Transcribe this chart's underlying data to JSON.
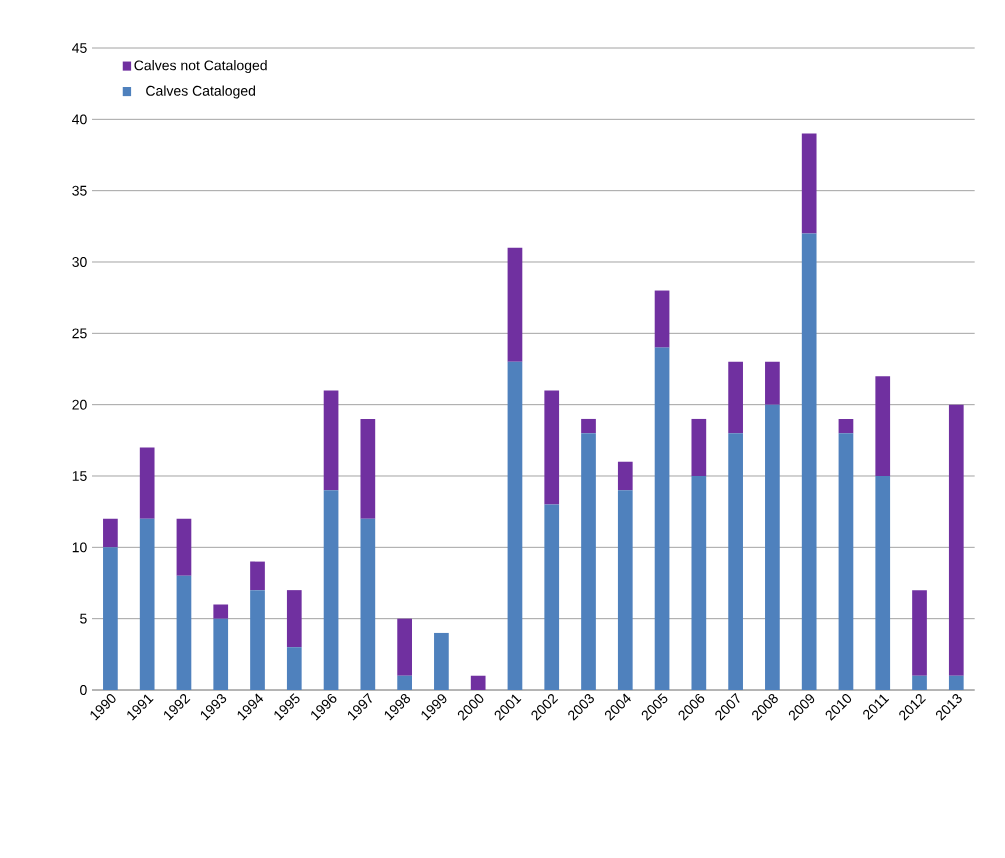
{
  "chart_data": {
    "type": "bar",
    "stacked": true,
    "categories": [
      "1990",
      "1991",
      "1992",
      "1993",
      "1994",
      "1995",
      "1996",
      "1997",
      "1998",
      "1999",
      "2000",
      "2001",
      "2002",
      "2003",
      "2004",
      "2005",
      "2006",
      "2007",
      "2008",
      "2009",
      "2010",
      "2011",
      "2012",
      "2013"
    ],
    "series": [
      {
        "name": "Calves Cataloged",
        "color": "#4f81bd",
        "values": [
          10,
          12,
          8,
          5,
          7,
          3,
          14,
          12,
          1,
          4,
          0,
          23,
          13,
          18,
          14,
          24,
          15,
          18,
          20,
          32,
          18,
          15,
          1,
          1
        ]
      },
      {
        "name": "Calves not Cataloged",
        "color": "#7030a0",
        "values": [
          2,
          5,
          4,
          1,
          2,
          4,
          7,
          7,
          4,
          0,
          1,
          8,
          8,
          1,
          2,
          4,
          4,
          5,
          3,
          7,
          1,
          7,
          6,
          19
        ]
      }
    ],
    "ylim": [
      0,
      45
    ],
    "yticks": [
      0,
      5,
      10,
      15,
      20,
      25,
      30,
      35,
      40,
      45
    ],
    "grid": "y",
    "legend": "top left"
  }
}
